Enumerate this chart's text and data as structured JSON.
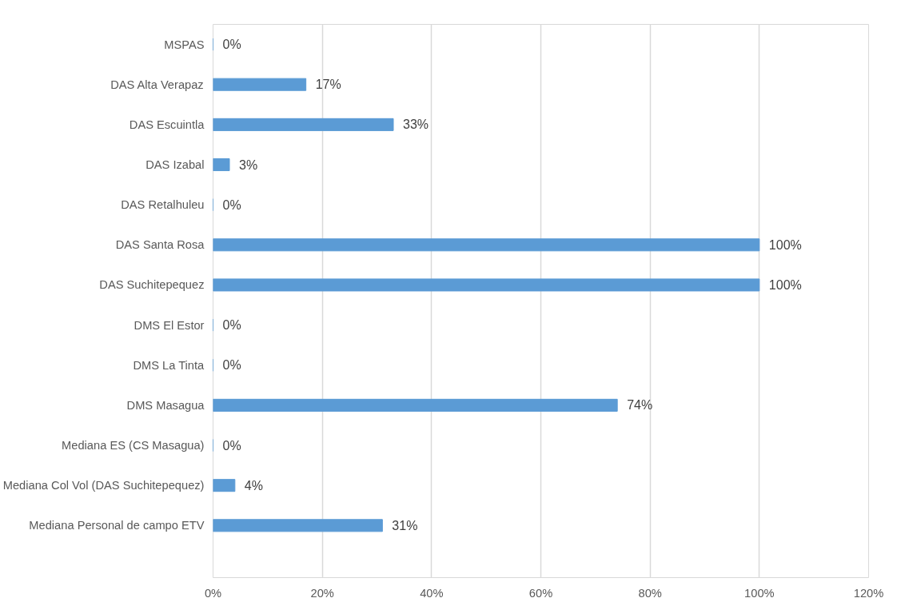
{
  "chart_data": {
    "type": "bar",
    "orientation": "horizontal",
    "categories": [
      "MSPAS",
      "DAS Alta Verapaz",
      "DAS Escuintla",
      "DAS Izabal",
      "DAS Retalhuleu",
      "DAS Santa Rosa",
      "DAS Suchitepequez",
      "DMS El Estor",
      "DMS La Tinta",
      "DMS Masagua",
      "Mediana ES (CS Masagua)",
      "Mediana Col Vol (DAS Suchitepequez)",
      "Mediana Personal de campo ETV"
    ],
    "values": [
      0,
      17,
      33,
      3,
      0,
      100,
      100,
      0,
      0,
      74,
      0,
      4,
      31
    ],
    "value_labels": [
      "0%",
      "17%",
      "33%",
      "3%",
      "0%",
      "100%",
      "100%",
      "0%",
      "0%",
      "74%",
      "0%",
      "4%",
      "31%"
    ],
    "color": "#5b9bd5",
    "xlim": [
      0,
      120
    ],
    "xticks": [
      {
        "value": 0,
        "label": "0%"
      },
      {
        "value": 20,
        "label": "20%"
      },
      {
        "value": 40,
        "label": "40%"
      },
      {
        "value": 60,
        "label": "60%"
      },
      {
        "value": 80,
        "label": "80%"
      },
      {
        "value": 100,
        "label": "100%"
      },
      {
        "value": 120,
        "label": "120%"
      }
    ],
    "grid": "x"
  }
}
